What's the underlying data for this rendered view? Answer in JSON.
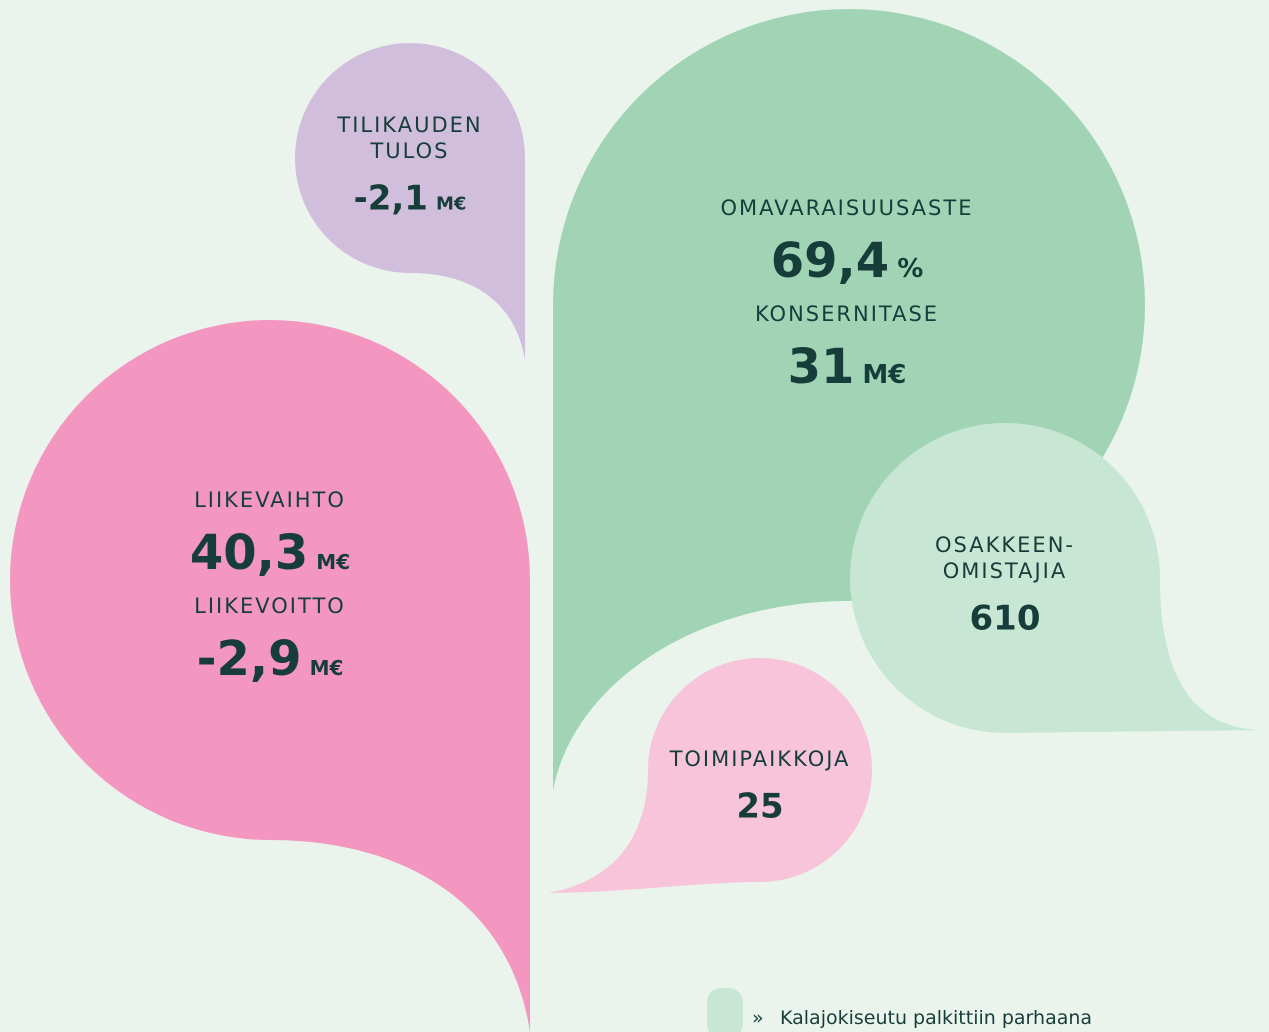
{
  "bubbles": [
    {
      "items": [
        {
          "label": [
            "TILIKAUDEN",
            "TULOS"
          ],
          "value": "-2,1",
          "unit": "M€"
        }
      ]
    },
    {
      "items": [
        {
          "label": [
            "OMAVARAISUUSASTE"
          ],
          "value": "69,4",
          "unit": "%"
        },
        {
          "label": [
            "KONSERNITASE"
          ],
          "value": "31",
          "unit": "M€"
        }
      ]
    },
    {
      "items": [
        {
          "label": [
            "LIIKEVAIHTO"
          ],
          "value": "40,3",
          "unit": "M€"
        },
        {
          "label": [
            "LIIKEVOITTO"
          ],
          "value": "-2,9",
          "unit": "M€"
        }
      ]
    },
    {
      "items": [
        {
          "label": [
            "OSAKKEEN-",
            "OMISTAJIA"
          ],
          "value": "610"
        }
      ]
    },
    {
      "items": [
        {
          "label": [
            "TOIMIPAIKKOJA"
          ],
          "value": "25"
        }
      ]
    }
  ],
  "footer": {
    "bullet": "»",
    "text": "Kalajokiseutu palkittiin parhaana"
  }
}
